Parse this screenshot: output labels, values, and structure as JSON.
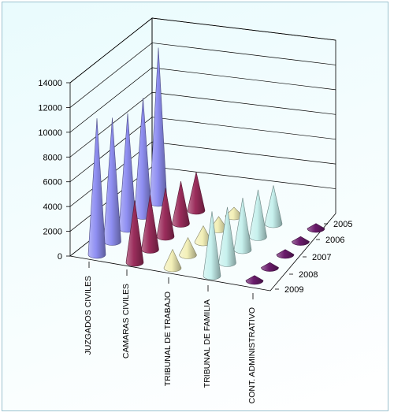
{
  "chart_data": {
    "type": "3d-cone",
    "categories": [
      "JUZGADOS CIVILES",
      "CAMARAS CIVILES",
      "TRIBUNAL DE TRABAJO",
      "TRIBUNAL DE FAMILIA",
      "CONT. ADMINISTRATIVO"
    ],
    "years": [
      "2005",
      "2006",
      "2007",
      "2008",
      "2009"
    ],
    "series": [
      {
        "category": "JUZGADOS CIVILES",
        "color": "#8f8ff2",
        "values": [
          12500,
          9500,
          9300,
          10000,
          11000
        ]
      },
      {
        "category": "CAMARAS CIVILES",
        "color": "#9b2d5c",
        "values": [
          3100,
          3400,
          3900,
          4400,
          5000
        ]
      },
      {
        "category": "TRIBUNAL DE TRABAJO",
        "color": "#f3f0b8",
        "values": [
          700,
          1000,
          1300,
          1400,
          1500
        ]
      },
      {
        "category": "TRIBUNAL DE FAMILIA",
        "color": "#c7f1ee",
        "values": [
          3100,
          3800,
          4200,
          4500,
          5200
        ]
      },
      {
        "category": "CONT. ADMINISTRATIVO",
        "color": "#6a1b6b",
        "values": [
          400,
          400,
          400,
          400,
          400
        ]
      }
    ],
    "y_ticks": [
      "0",
      "2000",
      "4000",
      "6000",
      "8000",
      "10000",
      "12000",
      "14000"
    ],
    "ylim": [
      0,
      14000
    ],
    "grid": true,
    "legend": "none"
  }
}
